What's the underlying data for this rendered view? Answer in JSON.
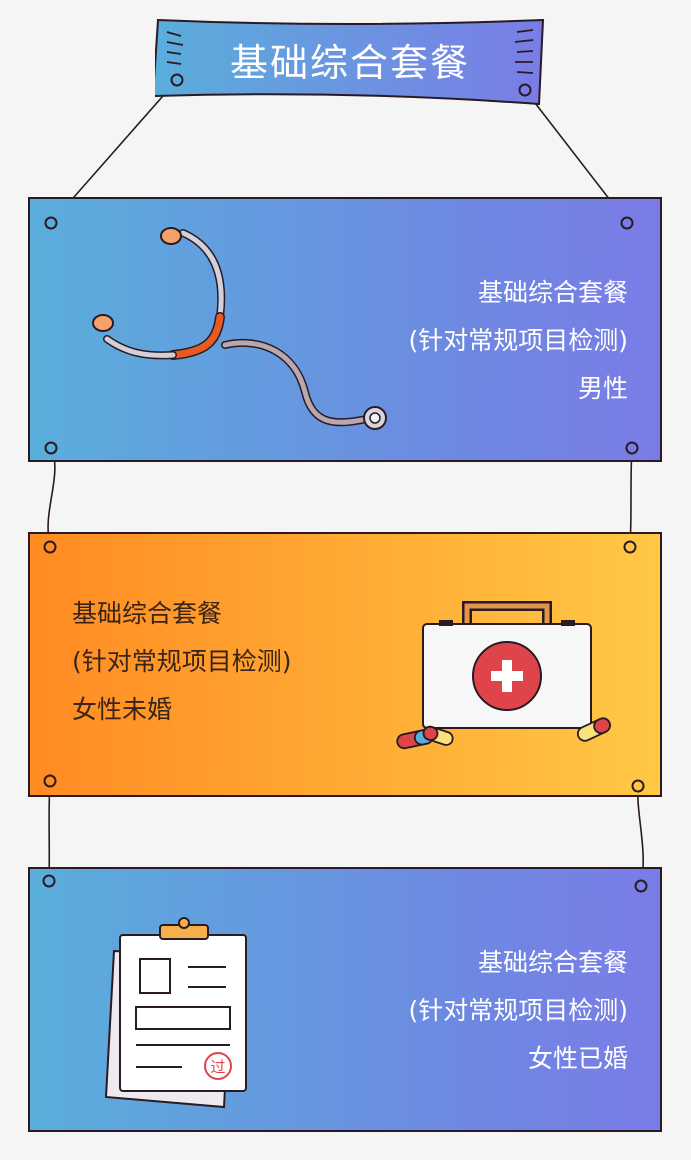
{
  "banner": {
    "title": "基础综合套餐"
  },
  "packages": [
    {
      "title": "基础综合套餐",
      "subtitle": "(针对常规项目检测)",
      "target": "男性",
      "icon": "stethoscope-icon"
    },
    {
      "title": "基础综合套餐",
      "subtitle": "(针对常规项目检测)",
      "target": "女性未婚",
      "icon": "first-aid-kit-icon"
    },
    {
      "title": "基础综合套餐",
      "subtitle": "(针对常规项目检测)",
      "target": "女性已婚",
      "icon": "clipboard-report-icon"
    }
  ],
  "stamp_text": "过",
  "colors": {
    "blue_start": "#5aaedb",
    "blue_end": "#7a7ce6",
    "orange_start": "#ff8b22",
    "orange_end": "#ffc845",
    "outline": "#2a1a24",
    "accent_red": "#e0444b"
  }
}
